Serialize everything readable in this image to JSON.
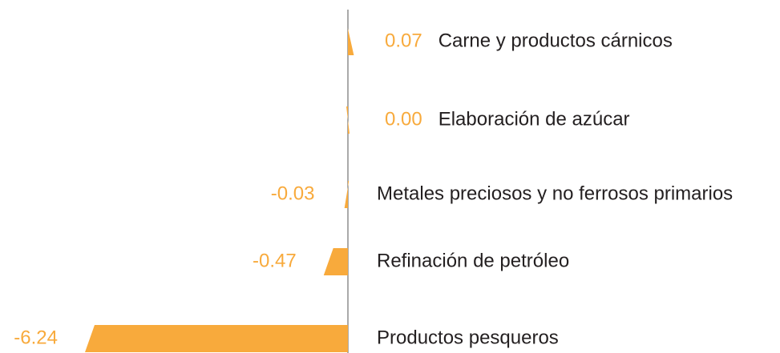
{
  "chart_data": {
    "type": "bar",
    "orientation": "horizontal",
    "categories": [
      "Carne y productos cárnicos",
      "Elaboración de azúcar",
      "Metales preciosos y no ferrosos primarios",
      "Refinación de petróleo",
      "Productos pesqueros"
    ],
    "values": [
      0.07,
      0.0,
      -0.03,
      -0.47,
      -6.24
    ],
    "value_labels": [
      "0.07",
      "0.00",
      "-0.03",
      "-0.47",
      "-6.24"
    ],
    "color": "#f8aa3c"
  }
}
